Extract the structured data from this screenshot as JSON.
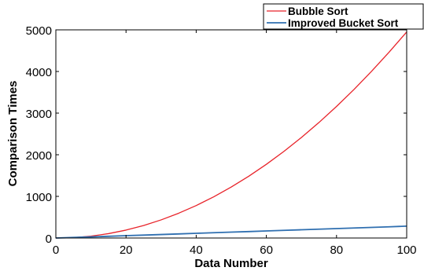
{
  "chart_data": {
    "type": "line",
    "title": "",
    "xlabel": "Data Number",
    "ylabel": "Comparison Times",
    "xlim": [
      0,
      100
    ],
    "ylim": [
      0,
      5000
    ],
    "xticks": [
      "0",
      "20",
      "40",
      "60",
      "80",
      "100"
    ],
    "yticks": [
      "0",
      "1000",
      "2000",
      "3000",
      "4000",
      "5000"
    ],
    "grid": false,
    "legend_position": "top-right",
    "x": [
      0,
      5,
      10,
      15,
      20,
      25,
      30,
      35,
      40,
      45,
      50,
      55,
      60,
      65,
      70,
      75,
      80,
      85,
      90,
      95,
      100
    ],
    "series": [
      {
        "name": "Bubble Sort",
        "color": "#e8232a",
        "values": [
          0,
          10,
          45,
          105,
          190,
          300,
          435,
          595,
          780,
          990,
          1225,
          1485,
          1770,
          2080,
          2415,
          2775,
          3160,
          3570,
          4005,
          4465,
          4950
        ]
      },
      {
        "name": "Improved Bucket Sort",
        "color": "#2f6fb0",
        "values": [
          0,
          13,
          27,
          41,
          56,
          70,
          84,
          98,
          113,
          127,
          141,
          155,
          170,
          184,
          198,
          212,
          227,
          241,
          255,
          269,
          285
        ]
      }
    ]
  }
}
